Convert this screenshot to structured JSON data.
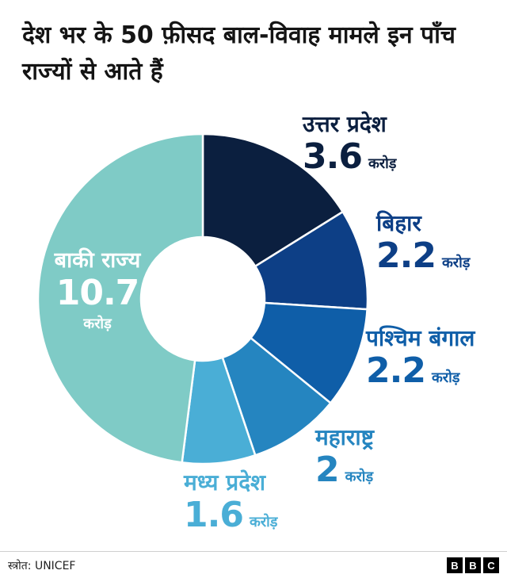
{
  "title": "देश भर के 50 फ़ीसद बाल-विवाह मामले इन पाँच राज्यों से आते हैं",
  "chart_data": {
    "type": "pie",
    "variant": "donut",
    "title": "देश भर के 50 फ़ीसद बाल-विवाह मामले इन पाँच राज्यों से आते हैं",
    "unit": "करोड़",
    "slices": [
      {
        "label": "उत्तर प्रदेश",
        "value": 3.6,
        "display": "3.6",
        "color": "#0b1f3f"
      },
      {
        "label": "बिहार",
        "value": 2.2,
        "display": "2.2",
        "color": "#0d3f86"
      },
      {
        "label": "पश्चिम बंगाल",
        "value": 2.2,
        "display": "2.2",
        "color": "#0f5ea8"
      },
      {
        "label": "महाराष्ट्र",
        "value": 2,
        "display": "2",
        "color": "#2585c0"
      },
      {
        "label": "मध्य प्रदेश",
        "value": 1.6,
        "display": "1.6",
        "color": "#4aaed6"
      },
      {
        "label": "बाकी राज्य",
        "value": 10.7,
        "display": "10.7",
        "color": "#7fcbc6"
      }
    ]
  },
  "footer": {
    "source": "स्त्रोत: UNICEF",
    "logo": [
      "B",
      "B",
      "C"
    ]
  }
}
